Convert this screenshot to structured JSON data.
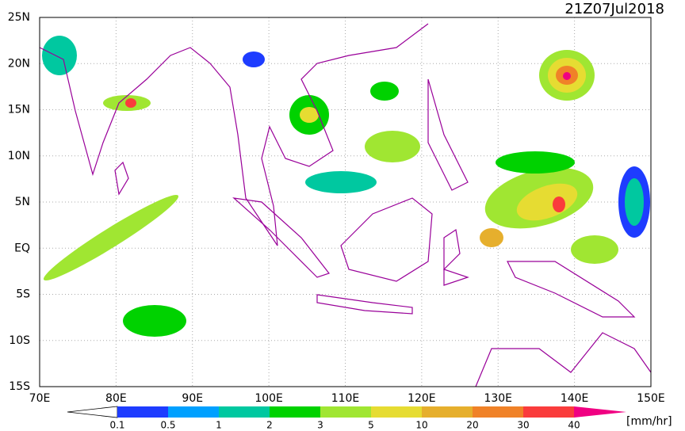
{
  "header": {
    "timestamp": "21Z07Jul2018"
  },
  "map": {
    "lon_labels": [
      "70E",
      "80E",
      "90E",
      "100E",
      "110E",
      "120E",
      "130E",
      "140E",
      "150E"
    ],
    "lat_labels": [
      "25N",
      "20N",
      "15N",
      "10N",
      "5N",
      "EQ",
      "5S",
      "10S",
      "15S"
    ]
  },
  "colorbar": {
    "labels": [
      "0.1",
      "0.5",
      "1",
      "2",
      "3",
      "5",
      "10",
      "20",
      "30",
      "40"
    ],
    "colors": [
      "#ffffff",
      "#1e3cff",
      "#00a0ff",
      "#00c8a0",
      "#00d200",
      "#a0e632",
      "#e6dc32",
      "#e6af2d",
      "#f08228",
      "#fa3c3c",
      "#f00082"
    ],
    "unit": "[mm/hr]"
  }
}
